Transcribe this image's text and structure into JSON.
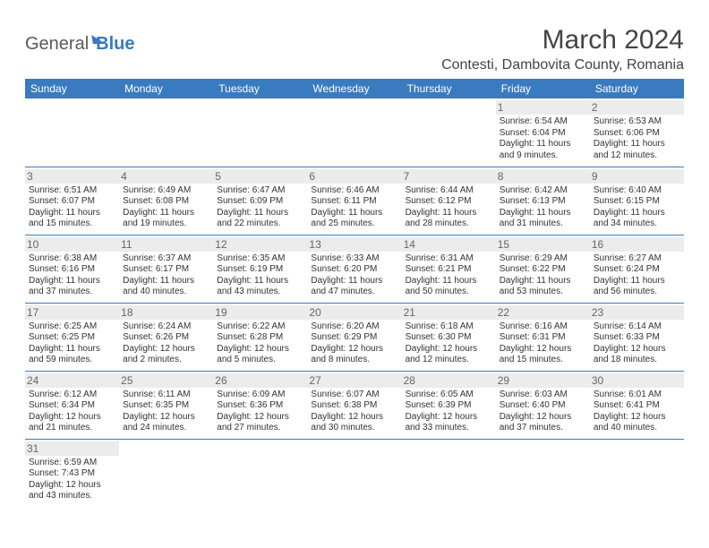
{
  "logo": {
    "part1": "General",
    "part2": "Blue"
  },
  "title": "March 2024",
  "location": "Contesti, Dambovita County, Romania",
  "colors": {
    "header_bg": "#3a7bbf",
    "header_text": "#ffffff",
    "border": "#3a7bbf",
    "daynum_bg": "#ececec",
    "body_text": "#333333",
    "background": "#ffffff"
  },
  "typography": {
    "title_fontsize": 30,
    "location_fontsize": 16,
    "weekday_fontsize": 12,
    "daynum_fontsize": 12,
    "cell_fontsize": 10
  },
  "weekdays": [
    "Sunday",
    "Monday",
    "Tuesday",
    "Wednesday",
    "Thursday",
    "Friday",
    "Saturday"
  ],
  "weeks": [
    [
      null,
      null,
      null,
      null,
      null,
      {
        "day": "1",
        "sunrise": "Sunrise: 6:54 AM",
        "sunset": "Sunset: 6:04 PM",
        "daylight1": "Daylight: 11 hours",
        "daylight2": "and 9 minutes."
      },
      {
        "day": "2",
        "sunrise": "Sunrise: 6:53 AM",
        "sunset": "Sunset: 6:06 PM",
        "daylight1": "Daylight: 11 hours",
        "daylight2": "and 12 minutes."
      }
    ],
    [
      {
        "day": "3",
        "sunrise": "Sunrise: 6:51 AM",
        "sunset": "Sunset: 6:07 PM",
        "daylight1": "Daylight: 11 hours",
        "daylight2": "and 15 minutes."
      },
      {
        "day": "4",
        "sunrise": "Sunrise: 6:49 AM",
        "sunset": "Sunset: 6:08 PM",
        "daylight1": "Daylight: 11 hours",
        "daylight2": "and 19 minutes."
      },
      {
        "day": "5",
        "sunrise": "Sunrise: 6:47 AM",
        "sunset": "Sunset: 6:09 PM",
        "daylight1": "Daylight: 11 hours",
        "daylight2": "and 22 minutes."
      },
      {
        "day": "6",
        "sunrise": "Sunrise: 6:46 AM",
        "sunset": "Sunset: 6:11 PM",
        "daylight1": "Daylight: 11 hours",
        "daylight2": "and 25 minutes."
      },
      {
        "day": "7",
        "sunrise": "Sunrise: 6:44 AM",
        "sunset": "Sunset: 6:12 PM",
        "daylight1": "Daylight: 11 hours",
        "daylight2": "and 28 minutes."
      },
      {
        "day": "8",
        "sunrise": "Sunrise: 6:42 AM",
        "sunset": "Sunset: 6:13 PM",
        "daylight1": "Daylight: 11 hours",
        "daylight2": "and 31 minutes."
      },
      {
        "day": "9",
        "sunrise": "Sunrise: 6:40 AM",
        "sunset": "Sunset: 6:15 PM",
        "daylight1": "Daylight: 11 hours",
        "daylight2": "and 34 minutes."
      }
    ],
    [
      {
        "day": "10",
        "sunrise": "Sunrise: 6:38 AM",
        "sunset": "Sunset: 6:16 PM",
        "daylight1": "Daylight: 11 hours",
        "daylight2": "and 37 minutes."
      },
      {
        "day": "11",
        "sunrise": "Sunrise: 6:37 AM",
        "sunset": "Sunset: 6:17 PM",
        "daylight1": "Daylight: 11 hours",
        "daylight2": "and 40 minutes."
      },
      {
        "day": "12",
        "sunrise": "Sunrise: 6:35 AM",
        "sunset": "Sunset: 6:19 PM",
        "daylight1": "Daylight: 11 hours",
        "daylight2": "and 43 minutes."
      },
      {
        "day": "13",
        "sunrise": "Sunrise: 6:33 AM",
        "sunset": "Sunset: 6:20 PM",
        "daylight1": "Daylight: 11 hours",
        "daylight2": "and 47 minutes."
      },
      {
        "day": "14",
        "sunrise": "Sunrise: 6:31 AM",
        "sunset": "Sunset: 6:21 PM",
        "daylight1": "Daylight: 11 hours",
        "daylight2": "and 50 minutes."
      },
      {
        "day": "15",
        "sunrise": "Sunrise: 6:29 AM",
        "sunset": "Sunset: 6:22 PM",
        "daylight1": "Daylight: 11 hours",
        "daylight2": "and 53 minutes."
      },
      {
        "day": "16",
        "sunrise": "Sunrise: 6:27 AM",
        "sunset": "Sunset: 6:24 PM",
        "daylight1": "Daylight: 11 hours",
        "daylight2": "and 56 minutes."
      }
    ],
    [
      {
        "day": "17",
        "sunrise": "Sunrise: 6:25 AM",
        "sunset": "Sunset: 6:25 PM",
        "daylight1": "Daylight: 11 hours",
        "daylight2": "and 59 minutes."
      },
      {
        "day": "18",
        "sunrise": "Sunrise: 6:24 AM",
        "sunset": "Sunset: 6:26 PM",
        "daylight1": "Daylight: 12 hours",
        "daylight2": "and 2 minutes."
      },
      {
        "day": "19",
        "sunrise": "Sunrise: 6:22 AM",
        "sunset": "Sunset: 6:28 PM",
        "daylight1": "Daylight: 12 hours",
        "daylight2": "and 5 minutes."
      },
      {
        "day": "20",
        "sunrise": "Sunrise: 6:20 AM",
        "sunset": "Sunset: 6:29 PM",
        "daylight1": "Daylight: 12 hours",
        "daylight2": "and 8 minutes."
      },
      {
        "day": "21",
        "sunrise": "Sunrise: 6:18 AM",
        "sunset": "Sunset: 6:30 PM",
        "daylight1": "Daylight: 12 hours",
        "daylight2": "and 12 minutes."
      },
      {
        "day": "22",
        "sunrise": "Sunrise: 6:16 AM",
        "sunset": "Sunset: 6:31 PM",
        "daylight1": "Daylight: 12 hours",
        "daylight2": "and 15 minutes."
      },
      {
        "day": "23",
        "sunrise": "Sunrise: 6:14 AM",
        "sunset": "Sunset: 6:33 PM",
        "daylight1": "Daylight: 12 hours",
        "daylight2": "and 18 minutes."
      }
    ],
    [
      {
        "day": "24",
        "sunrise": "Sunrise: 6:12 AM",
        "sunset": "Sunset: 6:34 PM",
        "daylight1": "Daylight: 12 hours",
        "daylight2": "and 21 minutes."
      },
      {
        "day": "25",
        "sunrise": "Sunrise: 6:11 AM",
        "sunset": "Sunset: 6:35 PM",
        "daylight1": "Daylight: 12 hours",
        "daylight2": "and 24 minutes."
      },
      {
        "day": "26",
        "sunrise": "Sunrise: 6:09 AM",
        "sunset": "Sunset: 6:36 PM",
        "daylight1": "Daylight: 12 hours",
        "daylight2": "and 27 minutes."
      },
      {
        "day": "27",
        "sunrise": "Sunrise: 6:07 AM",
        "sunset": "Sunset: 6:38 PM",
        "daylight1": "Daylight: 12 hours",
        "daylight2": "and 30 minutes."
      },
      {
        "day": "28",
        "sunrise": "Sunrise: 6:05 AM",
        "sunset": "Sunset: 6:39 PM",
        "daylight1": "Daylight: 12 hours",
        "daylight2": "and 33 minutes."
      },
      {
        "day": "29",
        "sunrise": "Sunrise: 6:03 AM",
        "sunset": "Sunset: 6:40 PM",
        "daylight1": "Daylight: 12 hours",
        "daylight2": "and 37 minutes."
      },
      {
        "day": "30",
        "sunrise": "Sunrise: 6:01 AM",
        "sunset": "Sunset: 6:41 PM",
        "daylight1": "Daylight: 12 hours",
        "daylight2": "and 40 minutes."
      }
    ],
    [
      {
        "day": "31",
        "sunrise": "Sunrise: 6:59 AM",
        "sunset": "Sunset: 7:43 PM",
        "daylight1": "Daylight: 12 hours",
        "daylight2": "and 43 minutes."
      },
      null,
      null,
      null,
      null,
      null,
      null
    ]
  ]
}
